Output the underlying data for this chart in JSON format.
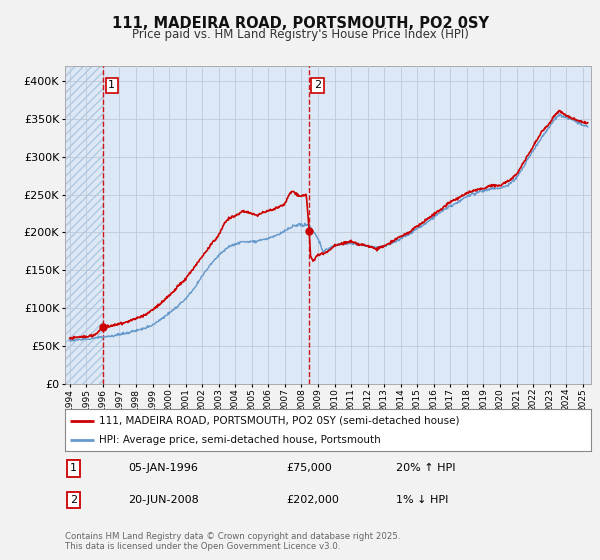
{
  "title": "111, MADEIRA ROAD, PORTSMOUTH, PO2 0SY",
  "subtitle": "Price paid vs. HM Land Registry's House Price Index (HPI)",
  "bg_color": "#f2f2f2",
  "plot_bg_color": "#dce8f5",
  "hatch_color": "#b0c8e0",
  "grid_color": "#c0c8d8",
  "red_line_color": "#cc0000",
  "blue_line_color": "#6699cc",
  "marker_color": "#cc0000",
  "sale1_year": 1996.03,
  "sale1_price": 75000,
  "sale1_label": "1",
  "sale2_year": 2008.47,
  "sale2_price": 202000,
  "sale2_label": "2",
  "legend_entry1": "111, MADEIRA ROAD, PORTSMOUTH, PO2 0SY (semi-detached house)",
  "legend_entry2": "HPI: Average price, semi-detached house, Portsmouth",
  "table_row1": [
    "1",
    "05-JAN-1996",
    "£75,000",
    "20% ↑ HPI"
  ],
  "table_row2": [
    "2",
    "20-JUN-2008",
    "£202,000",
    "1% ↓ HPI"
  ],
  "footer": "Contains HM Land Registry data © Crown copyright and database right 2025.\nThis data is licensed under the Open Government Licence v3.0.",
  "ylim": [
    0,
    420000
  ],
  "xlim_start": 1993.7,
  "xlim_end": 2025.5,
  "y_ticks": [
    0,
    50000,
    100000,
    150000,
    200000,
    250000,
    300000,
    350000,
    400000
  ]
}
